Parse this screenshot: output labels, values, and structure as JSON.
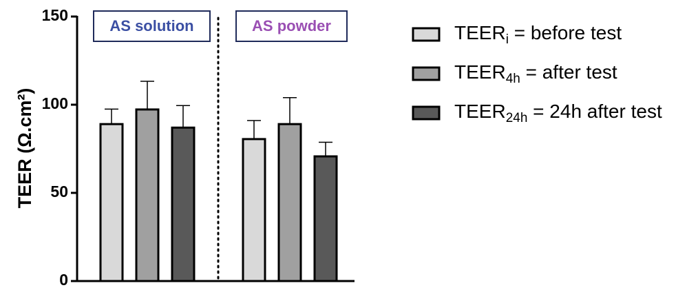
{
  "chart_data": {
    "type": "bar",
    "ylabel": "TEER (Ω.cm²)",
    "categories": [
      "AS solution",
      "AS powder"
    ],
    "category_colors": [
      "#3b4fa3",
      "#9a4fb3"
    ],
    "series": [
      {
        "name": {
          "base": "TEER",
          "sub": "i",
          "rest": " = before test"
        },
        "color": "#d9d9d9",
        "values": [
          89,
          80.5
        ],
        "errors": [
          8.5,
          10.5
        ]
      },
      {
        "name": {
          "base": "TEER",
          "sub": "4h",
          "rest": " = after test"
        },
        "color": "#a0a0a0",
        "values": [
          97.3,
          89
        ],
        "errors": [
          16,
          15
        ]
      },
      {
        "name": {
          "base": "TEER",
          "sub": "24h",
          "rest": " = 24h after test"
        },
        "color": "#595959",
        "values": [
          87,
          70.7
        ],
        "errors": [
          12.5,
          8
        ]
      }
    ],
    "ylim": [
      0,
      150
    ],
    "yticks": [
      0,
      50,
      100,
      150
    ],
    "divider": true
  }
}
